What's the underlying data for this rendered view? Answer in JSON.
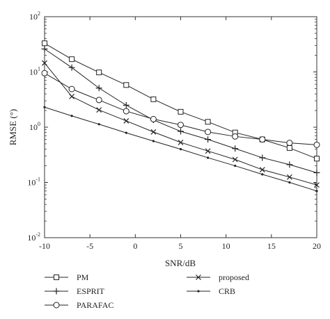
{
  "chart_data": {
    "type": "line",
    "xlabel": "SNR/dB",
    "ylabel": "RMSE (°)",
    "xlim": [
      -10,
      20
    ],
    "ylim": [
      0.01,
      100
    ],
    "yscale": "log",
    "x_ticks": [
      -10,
      -5,
      0,
      5,
      10,
      15,
      20
    ],
    "x_tick_labels": [
      "-10",
      "-5",
      "0",
      "5",
      "10",
      "15",
      "20"
    ],
    "y_ticks": [
      0.01,
      0.1,
      1,
      10,
      100
    ],
    "y_tick_labels": [
      {
        "base": "10",
        "exp": "-2"
      },
      {
        "base": "10",
        "exp": "-1"
      },
      {
        "base": "10",
        "exp": "0"
      },
      {
        "base": "10",
        "exp": "1"
      },
      {
        "base": "10",
        "exp": "2"
      }
    ],
    "grid": false,
    "legend_position": "bottom",
    "series": [
      {
        "name": "PM",
        "marker": "square",
        "x": [
          -10,
          -7,
          -4,
          -1,
          2,
          5,
          8,
          11,
          14,
          17,
          20
        ],
        "y": [
          33,
          17,
          9.8,
          5.8,
          3.2,
          1.9,
          1.25,
          0.8,
          0.6,
          0.42,
          0.27
        ]
      },
      {
        "name": "ESPRIT",
        "marker": "plus",
        "x": [
          -10,
          -7,
          -4,
          -1,
          2,
          5,
          8,
          11,
          14,
          17,
          20
        ],
        "y": [
          26,
          12,
          5.1,
          2.5,
          1.35,
          0.84,
          0.6,
          0.41,
          0.28,
          0.21,
          0.15
        ]
      },
      {
        "name": "PARAFAC",
        "marker": "circle",
        "x": [
          -10,
          -7,
          -4,
          -1,
          2,
          5,
          8,
          11,
          14,
          17,
          20
        ],
        "y": [
          9.5,
          4.9,
          3.1,
          1.95,
          1.4,
          1.1,
          0.82,
          0.68,
          0.6,
          0.52,
          0.48
        ]
      },
      {
        "name": "proposed",
        "marker": "x",
        "x": [
          -10,
          -7,
          -4,
          -1,
          2,
          5,
          8,
          11,
          14,
          17,
          20
        ],
        "y": [
          14.5,
          3.6,
          2.05,
          1.3,
          0.82,
          0.53,
          0.37,
          0.26,
          0.17,
          0.125,
          0.09
        ]
      },
      {
        "name": "CRB",
        "marker": "dot",
        "x": [
          -10,
          -7,
          -4,
          -1,
          2,
          5,
          8,
          11,
          14,
          17,
          20
        ],
        "y": [
          2.3,
          1.6,
          1.13,
          0.79,
          0.56,
          0.4,
          0.28,
          0.2,
          0.14,
          0.1,
          0.07
        ]
      }
    ]
  }
}
